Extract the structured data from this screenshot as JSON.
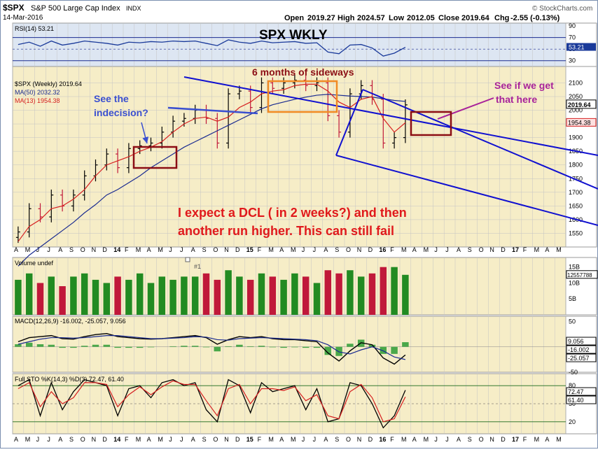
{
  "header": {
    "symbol": "$SPX",
    "name": "S&P 500 Large Cap Index",
    "exchange": "INDX",
    "date": "14-Mar-2016",
    "open_label": "Open",
    "open": "2019.27",
    "high_label": "High",
    "high": "2024.57",
    "low_label": "Low",
    "low": "2012.05",
    "close_label": "Close",
    "close": "2019.64",
    "chg_label": "Chg",
    "chg": "-2.55 (-0.13%)",
    "brand": "© StockCharts.com"
  },
  "annotations": {
    "title": "SPX WKLY",
    "sideways": "6 months of sideways",
    "indecision_1": "See the",
    "indecision_2": "indecision?",
    "seeif_1": "See if we get",
    "seeif_2": "that here",
    "expect_1": "I expect a DCL ( in 2 weeks?) and then",
    "expect_2": "another run higher.  This can still fail",
    "marker": "#1"
  },
  "colors": {
    "panel_bg": "#f6edc7",
    "grid": "#c4c4c4",
    "up": "#228b22",
    "down": "#c0183a",
    "price": "#000000",
    "ma13": "#d62020",
    "ma50": "#1a2b90",
    "channel": "#1010d0",
    "rsi": "#1a3a9a",
    "annotation_box_orange": "#f08a24",
    "annotation_box_red": "#8b0d14"
  },
  "chart_data": [
    {
      "type": "line",
      "panel": "price",
      "legend": [
        "$SPX (Weekly) 2019.64",
        "MA(50) 2032.32",
        "MA(13) 1954.38"
      ],
      "x_ticks": [
        "A",
        "M",
        "J",
        "J",
        "A",
        "S",
        "O",
        "N",
        "D",
        "14",
        "F",
        "M",
        "A",
        "M",
        "J",
        "J",
        "A",
        "S",
        "O",
        "N",
        "D",
        "15",
        "F",
        "M",
        "A",
        "M",
        "J",
        "J",
        "A",
        "S",
        "O",
        "N",
        "D",
        "16",
        "F",
        "M",
        "A",
        "M",
        "J",
        "J",
        "A",
        "S",
        "O",
        "N",
        "D",
        "17",
        "F",
        "M",
        "A",
        "M"
      ],
      "ylim": [
        1500,
        2160
      ],
      "y_ticks": [
        1550,
        1600,
        1650,
        1700,
        1750,
        1800,
        1850,
        1900,
        1950,
        2000,
        2050,
        2100
      ],
      "last_labels": {
        "close": "2019.64",
        "ma13": "1954.38"
      },
      "weeks": [
        "2013-04",
        "2013-05",
        "2013-06",
        "2013-07",
        "2013-08",
        "2013-09",
        "2013-10",
        "2013-11",
        "2013-12",
        "2014-01",
        "2014-02",
        "2014-03",
        "2014-04",
        "2014-05",
        "2014-06",
        "2014-07",
        "2014-08",
        "2014-09",
        "2014-10",
        "2014-11",
        "2014-12",
        "2015-01",
        "2015-02",
        "2015-03",
        "2015-04",
        "2015-05",
        "2015-06",
        "2015-07",
        "2015-08",
        "2015-09",
        "2015-10",
        "2015-11",
        "2015-12",
        "2016-01",
        "2016-02",
        "2016-03"
      ],
      "close": [
        1555,
        1640,
        1610,
        1690,
        1650,
        1690,
        1760,
        1800,
        1840,
        1790,
        1860,
        1870,
        1880,
        1920,
        1960,
        1970,
        2000,
        1970,
        1880,
        2060,
        2070,
        2010,
        2100,
        2080,
        2100,
        2110,
        2090,
        2100,
        1980,
        1920,
        2060,
        2090,
        2040,
        1880,
        1900,
        2019.64
      ],
      "ma13": [
        1520,
        1575,
        1600,
        1640,
        1650,
        1675,
        1710,
        1760,
        1800,
        1815,
        1830,
        1850,
        1865,
        1885,
        1920,
        1950,
        1970,
        1975,
        1960,
        1975,
        2010,
        2030,
        2060,
        2070,
        2075,
        2090,
        2095,
        2095,
        2070,
        2030,
        2010,
        2040,
        2050,
        1970,
        1920,
        1954.38
      ],
      "ma50": [
        1430,
        1470,
        1500,
        1530,
        1560,
        1590,
        1625,
        1655,
        1690,
        1710,
        1735,
        1760,
        1790,
        1815,
        1840,
        1865,
        1885,
        1905,
        1925,
        1945,
        1965,
        1985,
        2005,
        2020,
        2030,
        2040,
        2048,
        2055,
        2058,
        2055,
        2052,
        2050,
        2048,
        2042,
        2036,
        2032.32
      ]
    },
    {
      "type": "line",
      "panel": "RSI",
      "legend": [
        "RSI(14) 53.21"
      ],
      "ylim": [
        20,
        95
      ],
      "y_ticks": [
        30,
        50,
        70,
        90
      ],
      "last_label": "53.21",
      "values": [
        58,
        62,
        55,
        64,
        57,
        60,
        64,
        62,
        60,
        57,
        62,
        61,
        63,
        62,
        64,
        63,
        64,
        60,
        56,
        66,
        62,
        60,
        64,
        61,
        62,
        63,
        60,
        61,
        45,
        42,
        57,
        58,
        52,
        38,
        43,
        53.21
      ]
    },
    {
      "type": "bar",
      "panel": "Volume",
      "legend": [
        "Volume undef"
      ],
      "y_ticks": [
        "5B",
        "10B",
        "15B"
      ],
      "last_label": "12557788",
      "values": [
        11,
        13,
        10,
        12,
        9,
        12,
        13,
        11,
        10,
        12,
        11,
        13,
        10,
        12,
        11,
        12,
        12,
        13,
        11,
        14,
        12,
        11,
        13,
        12,
        11,
        13,
        12,
        10,
        14,
        13,
        14,
        12,
        13,
        15,
        15,
        12.56
      ]
    },
    {
      "type": "line",
      "panel": "MACD",
      "legend": [
        "MACD(12,26,9) -16.002, -25.057, 9.056"
      ],
      "y_ticks": [
        -50,
        0,
        50
      ],
      "last_labels": [
        "9.056",
        "-16.002",
        "-25.057"
      ],
      "macd": [
        10,
        18,
        20,
        22,
        16,
        15,
        20,
        24,
        26,
        20,
        18,
        16,
        15,
        16,
        18,
        20,
        22,
        18,
        5,
        14,
        20,
        18,
        20,
        16,
        14,
        14,
        12,
        10,
        -12,
        -28,
        -8,
        8,
        4,
        -22,
        -34,
        -16.002
      ],
      "signal": [
        5,
        10,
        15,
        18,
        18,
        17,
        18,
        20,
        22,
        22,
        20,
        18,
        16,
        16,
        17,
        18,
        20,
        19,
        14,
        13,
        16,
        17,
        18,
        17,
        16,
        15,
        14,
        12,
        4,
        -10,
        -14,
        -6,
        0,
        -8,
        -20,
        -25.057
      ],
      "histogram": [
        5,
        8,
        5,
        4,
        -2,
        -2,
        2,
        4,
        4,
        -2,
        -2,
        -2,
        -1,
        0,
        1,
        2,
        2,
        -1,
        -9,
        1,
        4,
        1,
        2,
        -1,
        -2,
        -1,
        -2,
        -2,
        -16,
        -18,
        6,
        14,
        4,
        -14,
        -14,
        9.056
      ]
    },
    {
      "type": "line",
      "panel": "Full STO",
      "legend": [
        "Full STO %K(14,3) %D(3) 72.47, 61.40"
      ],
      "y_ticks": [
        20,
        50,
        80
      ],
      "last_labels": [
        "72.47",
        "61.40"
      ],
      "k": [
        80,
        90,
        30,
        85,
        40,
        70,
        90,
        85,
        80,
        30,
        75,
        80,
        60,
        85,
        90,
        80,
        85,
        40,
        20,
        90,
        80,
        35,
        85,
        70,
        75,
        80,
        40,
        75,
        20,
        25,
        85,
        80,
        50,
        10,
        30,
        72.47
      ],
      "d": [
        75,
        85,
        45,
        70,
        50,
        60,
        85,
        85,
        82,
        45,
        65,
        78,
        65,
        78,
        88,
        82,
        82,
        55,
        30,
        75,
        82,
        50,
        75,
        75,
        72,
        78,
        55,
        65,
        30,
        25,
        70,
        82,
        60,
        20,
        25,
        61.4
      ]
    }
  ]
}
